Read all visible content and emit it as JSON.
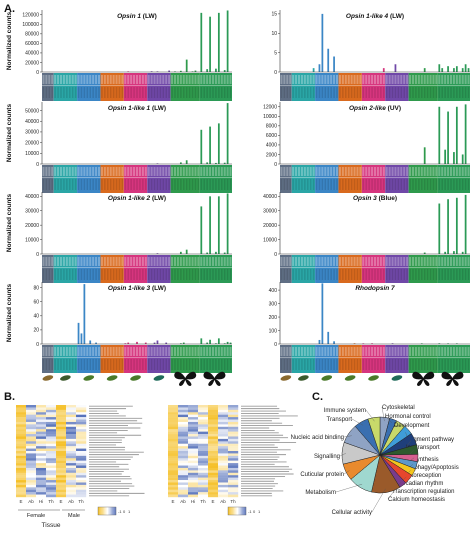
{
  "panel_labels": {
    "a": "A.",
    "b": "B.",
    "c": "C."
  },
  "colors": {
    "segments": [
      "#5f6e84",
      "#2aa6a6",
      "#3b86c6",
      "#d96a1e",
      "#d6357e",
      "#7048a8",
      "#2f9a4c",
      "#2b9a56"
    ],
    "pie": [
      "#8fa3c4",
      "#3a6fb0",
      "#c8d96a",
      "#3f9dd8",
      "#1f3f7a",
      "#2e5a2e",
      "#d65f8f",
      "#5c98c9",
      "#f3c51d",
      "#e6462d",
      "#7a3b8c",
      "#9a5a2a",
      "#9fd8cf",
      "#e88a2d",
      "#c9c9c9"
    ]
  },
  "heatmap_b": {
    "left_group_labels": [
      "Female",
      "Male"
    ],
    "left_columns": [
      "E",
      "Ab",
      "Hi",
      "Th",
      "E",
      "Ab",
      "Th"
    ],
    "right_columns": [
      "E",
      "Ab",
      "Hi",
      "Th",
      "E",
      "Ab",
      "Th"
    ],
    "scale_ticks": [
      "-1",
      "0",
      "1"
    ],
    "xlabel": "Tissue"
  },
  "chart_data": [
    {
      "type": "bar",
      "title": "Opsin 1",
      "title_suffix": " (LW)",
      "ylabel": "Normalized counts",
      "yticks": [
        "0",
        "20000",
        "40000",
        "60000",
        "80000",
        "100000",
        "120000"
      ],
      "ylim": [
        0,
        130000
      ],
      "values": [
        0,
        0,
        0,
        0,
        0,
        0,
        0,
        0,
        0,
        0,
        0,
        0,
        0,
        0,
        0,
        0,
        0,
        0,
        0,
        0,
        0,
        0,
        0,
        0,
        0,
        0,
        0,
        0,
        0,
        500,
        0,
        0,
        0,
        0,
        0,
        0,
        0,
        1500,
        0,
        600,
        0,
        0,
        0,
        3000,
        0,
        1200,
        0,
        2500,
        0,
        26000,
        0,
        1000,
        3000,
        0,
        124000,
        0,
        6000,
        116000,
        0,
        7000,
        124000,
        0,
        4000,
        129000,
        0
      ]
    },
    {
      "type": "bar",
      "title": "Opsin 1-like 4",
      "title_suffix": " (LW)",
      "ylabel": "",
      "yticks": [
        "0",
        "5",
        "10",
        "15"
      ],
      "ylim": [
        0,
        16
      ],
      "values": [
        0,
        0,
        0,
        0,
        0,
        0,
        0,
        0,
        0,
        0,
        0,
        1,
        0,
        2,
        15,
        0,
        6,
        0,
        4,
        0,
        0,
        0,
        0,
        0,
        0,
        0,
        0,
        0,
        0,
        0,
        0,
        0,
        0,
        0,
        0,
        1,
        0,
        0,
        0,
        2,
        0,
        0,
        0,
        0,
        0,
        0,
        0,
        0,
        0,
        1,
        0,
        0,
        0,
        0,
        2,
        1,
        0,
        1.5,
        0,
        1,
        1.5,
        0,
        1,
        2,
        1
      ]
    },
    {
      "type": "bar",
      "title": "Opsin 1-like 1",
      "title_suffix": " (LW)",
      "ylabel": "Normalized counts",
      "yticks": [
        "0",
        "10000",
        "20000",
        "30000",
        "40000",
        "50000"
      ],
      "ylim": [
        0,
        58000
      ],
      "values": [
        0,
        0,
        0,
        0,
        0,
        0,
        0,
        0,
        0,
        0,
        0,
        0,
        0,
        0,
        0,
        0,
        0,
        0,
        0,
        0,
        0,
        0,
        0,
        0,
        0,
        0,
        0,
        0,
        0,
        0,
        0,
        0,
        0,
        0,
        0,
        0,
        0,
        0,
        0,
        300,
        0,
        0,
        0,
        0,
        0,
        0,
        0,
        1500,
        0,
        3500,
        0,
        0,
        0,
        0,
        32000,
        0,
        1500,
        35000,
        0,
        1000,
        38000,
        0,
        1200,
        57000,
        0
      ]
    },
    {
      "type": "bar",
      "title": "Opsin 2-like",
      "title_suffix": " (UV)",
      "ylabel": "",
      "yticks": [
        "0",
        "2000",
        "4000",
        "6000",
        "8000",
        "10000",
        "12000"
      ],
      "ylim": [
        0,
        13000
      ],
      "values": [
        0,
        0,
        0,
        0,
        0,
        0,
        0,
        0,
        0,
        0,
        0,
        0,
        0,
        0,
        0,
        0,
        0,
        0,
        0,
        0,
        0,
        0,
        0,
        0,
        0,
        0,
        0,
        0,
        0,
        0,
        0,
        0,
        0,
        0,
        0,
        0,
        0,
        0,
        0,
        0,
        0,
        0,
        0,
        0,
        0,
        0,
        0,
        0,
        0,
        3500,
        0,
        0,
        0,
        0,
        12000,
        0,
        3000,
        11000,
        0,
        2500,
        12000,
        0,
        2000,
        12500,
        0
      ]
    },
    {
      "type": "bar",
      "title": "Opsin 1-like 2",
      "title_suffix": " (LW)",
      "ylabel": "Normalized counts",
      "yticks": [
        "0",
        "10000",
        "20000",
        "30000",
        "40000"
      ],
      "ylim": [
        0,
        43000
      ],
      "values": [
        0,
        0,
        0,
        0,
        0,
        0,
        0,
        0,
        0,
        0,
        0,
        0,
        0,
        0,
        0,
        0,
        0,
        0,
        0,
        0,
        0,
        0,
        0,
        0,
        0,
        0,
        0,
        0,
        0,
        0,
        0,
        0,
        0,
        0,
        0,
        0,
        0,
        0,
        0,
        500,
        0,
        0,
        0,
        0,
        0,
        0,
        0,
        1500,
        0,
        3000,
        0,
        0,
        0,
        0,
        33000,
        0,
        1000,
        40000,
        0,
        1500,
        40000,
        0,
        1000,
        42000,
        0
      ]
    },
    {
      "type": "bar",
      "title": "Opsin 3",
      "title_suffix": " (Blue)",
      "ylabel": "",
      "yticks": [
        "0",
        "10000",
        "20000",
        "30000",
        "40000"
      ],
      "ylim": [
        0,
        43000
      ],
      "values": [
        0,
        0,
        0,
        0,
        0,
        0,
        0,
        0,
        0,
        0,
        0,
        0,
        0,
        0,
        0,
        0,
        0,
        0,
        0,
        0,
        0,
        0,
        0,
        0,
        0,
        0,
        0,
        0,
        0,
        0,
        0,
        0,
        0,
        0,
        0,
        0,
        0,
        0,
        0,
        0,
        0,
        0,
        0,
        0,
        0,
        0,
        0,
        0,
        0,
        1000,
        0,
        0,
        0,
        0,
        35000,
        0,
        1500,
        38000,
        0,
        2000,
        39000,
        0,
        1500,
        41000,
        0
      ]
    },
    {
      "type": "bar",
      "title": "Opsin 1-like 3",
      "title_suffix": " (LW)",
      "ylabel": "Normalized counts",
      "yticks": [
        "0",
        "20",
        "40",
        "60",
        "80"
      ],
      "ylim": [
        0,
        88
      ],
      "values": [
        0,
        0,
        0,
        0,
        0,
        0,
        0,
        0,
        0,
        0,
        0,
        0,
        30,
        15,
        85,
        0,
        5,
        0,
        2,
        0,
        0,
        0,
        0,
        0,
        0,
        0,
        0,
        0,
        1,
        2,
        0,
        0,
        3,
        0,
        0,
        2,
        0,
        0,
        2,
        5,
        0,
        0,
        2,
        0,
        0,
        0,
        0,
        1,
        2,
        0,
        0,
        0,
        0,
        0,
        8,
        0,
        2,
        6,
        0,
        1,
        8,
        0,
        1,
        3,
        2
      ]
    },
    {
      "type": "bar",
      "title": "Rhodopsin 7",
      "title_suffix": "",
      "ylabel": "",
      "yticks": [
        "0",
        "100",
        "200",
        "300",
        "400"
      ],
      "ylim": [
        0,
        460
      ],
      "values": [
        0,
        0,
        0,
        0,
        0,
        0,
        0,
        0,
        0,
        0,
        0,
        0,
        0,
        30,
        450,
        0,
        90,
        0,
        20,
        0,
        0,
        0,
        0,
        0,
        0,
        5,
        0,
        0,
        3,
        0,
        0,
        5,
        0,
        0,
        0,
        0,
        0,
        0,
        5,
        0,
        0,
        0,
        0,
        0,
        0,
        0,
        0,
        0,
        3,
        0,
        0,
        0,
        0,
        0,
        5,
        0,
        0,
        3,
        0,
        0,
        3,
        0,
        0,
        0,
        0
      ]
    },
    {
      "type": "pie",
      "labels": [
        "Cytoskeletal",
        "Hormonal control",
        "Development",
        "Pigment pathway",
        "Ion transport",
        "Biosynthesis",
        "Autophagy/Apoptosis",
        "Photoreception",
        "Circadian rhythm",
        "Transcription regulation",
        "Calcium homeostasis",
        "Cellular activity",
        "Metabolism",
        "Cuticular protein",
        "Signalling",
        "Nucleic acid binding",
        "Transport",
        "Immune system"
      ],
      "values": [
        4,
        3,
        4,
        4,
        5,
        4,
        3,
        3,
        3,
        4,
        3,
        12,
        10,
        7,
        9,
        8,
        6,
        5
      ]
    }
  ]
}
